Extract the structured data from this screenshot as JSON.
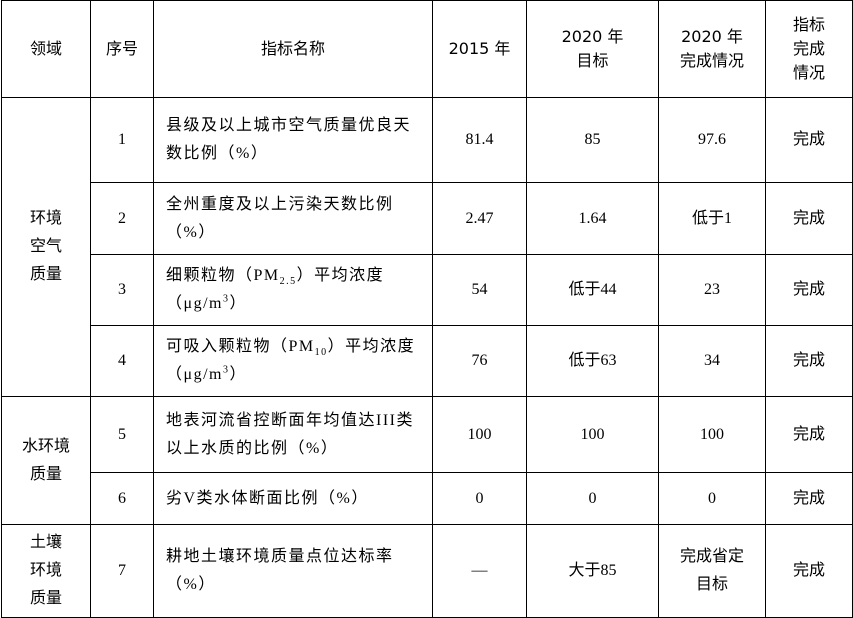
{
  "table": {
    "header": [
      [
        "领域"
      ],
      [
        "序号"
      ],
      [
        "指标名称"
      ],
      [
        "2015 年"
      ],
      [
        "2020 年",
        "目标"
      ],
      [
        "2020 年",
        "完成情况"
      ],
      [
        "指标",
        "完成",
        "情况"
      ]
    ],
    "groups": [
      {
        "domain": [
          "环境",
          "空气",
          "质量"
        ],
        "rows": [
          [
            "1",
            [
              "县级及以上城市空气质量优良天数比例（%）"
            ],
            "81.4",
            "85",
            [
              "97.6"
            ],
            "完成"
          ],
          [
            "2",
            [
              "全州重度及以上污染天数比例（%）"
            ],
            "2.47",
            "1.64",
            [
              "低于1"
            ],
            "完成"
          ],
          [
            "3",
            [
              "细颗粒物（PM",
              "2.5",
              "）平均浓度（μg/m",
              "3",
              "）"
            ],
            "54",
            "低于44",
            [
              "23"
            ],
            "完成"
          ],
          [
            "4",
            [
              "可吸入颗粒物（PM",
              "10",
              "）平均浓度（μg/m",
              "3",
              "）"
            ],
            "76",
            "低于63",
            [
              "34"
            ],
            "完成"
          ]
        ]
      },
      {
        "domain": [
          "水环境",
          "质量"
        ],
        "rows": [
          [
            "5",
            [
              "地表河流省控断面年均值达III类以上水质的比例（%）"
            ],
            "100",
            "100",
            [
              "100"
            ],
            "完成"
          ],
          [
            "6",
            [
              "劣V类水体断面比例（%）"
            ],
            "0",
            "0",
            [
              "0"
            ],
            "完成"
          ]
        ]
      },
      {
        "domain": [
          "土壤",
          "环境",
          "质量"
        ],
        "rows": [
          [
            "7",
            [
              "耕地土壤环境质量点位达标率（%）"
            ],
            "—",
            "大于85",
            [
              "完成省定",
              "目标"
            ],
            "完成"
          ]
        ]
      }
    ]
  }
}
